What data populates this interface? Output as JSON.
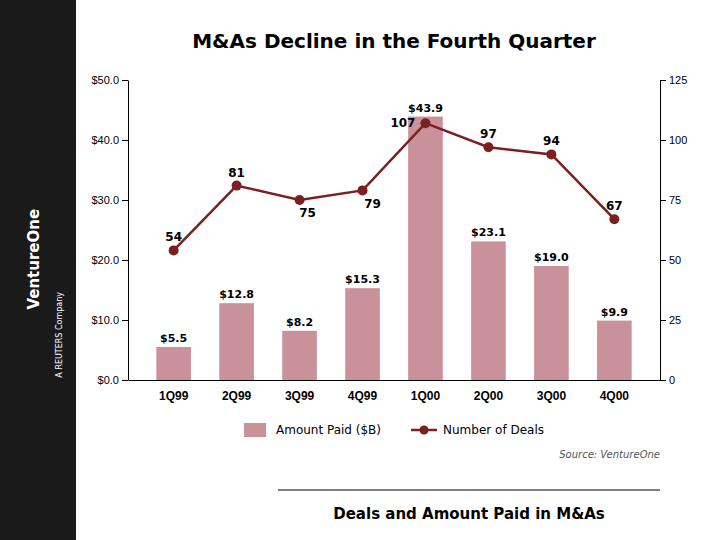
{
  "chart_data": {
    "type": "bar",
    "title": "M&As Decline in the Fourth Quarter",
    "subtitle": "Deals and Amount Paid in M&As",
    "annotations": [
      "VentureOne",
      "A REUTERS Company",
      "Source: VentureOne"
    ],
    "categories": [
      "1Q99",
      "2Q99",
      "3Q99",
      "4Q99",
      "1Q00",
      "2Q00",
      "3Q00",
      "4Q00"
    ],
    "series": [
      {
        "name": "Amount Paid ($B)",
        "type": "bar",
        "color": "#c9919a",
        "values": [
          5.5,
          12.8,
          8.2,
          15.3,
          43.9,
          23.1,
          19.0,
          9.9
        ],
        "value_labels": [
          "$5.5",
          "$12.8",
          "$8.2",
          "$15.3",
          "$43.9",
          "$23.1",
          "$19.0",
          "$9.9"
        ]
      },
      {
        "name": "Number of Deals",
        "type": "line",
        "axis": "y2",
        "color": "#7b2020",
        "marker": "circle",
        "values": [
          54,
          81,
          75,
          79,
          107,
          97,
          94,
          67
        ]
      }
    ],
    "ylim": [
      0,
      50
    ],
    "yticks": [
      {
        "value": 0,
        "label": "$0.0"
      },
      {
        "value": 10,
        "label": "$10.0"
      },
      {
        "value": 20,
        "label": "$20.0"
      },
      {
        "value": 30,
        "label": "$30.0"
      },
      {
        "value": 40,
        "label": "$40.0"
      },
      {
        "value": 50,
        "label": "$50.0"
      }
    ],
    "y2lim": [
      0,
      125
    ],
    "y2ticks": [
      0,
      25,
      50,
      75,
      100,
      125
    ],
    "data_labels": true,
    "grid": false,
    "legend": "bottom"
  }
}
